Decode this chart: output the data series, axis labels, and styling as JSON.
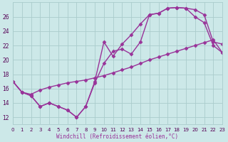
{
  "line_straight_x": [
    0,
    1,
    2,
    3,
    4,
    5,
    6,
    7,
    8,
    9,
    10,
    11,
    12,
    13,
    14,
    15,
    16,
    17,
    18,
    19,
    20,
    21,
    22,
    23
  ],
  "line_straight_y": [
    17.0,
    15.5,
    15.2,
    15.8,
    16.2,
    16.5,
    16.8,
    17.0,
    17.2,
    17.5,
    17.8,
    18.2,
    18.6,
    19.0,
    19.5,
    20.0,
    20.4,
    20.8,
    21.2,
    21.6,
    22.0,
    22.4,
    22.8,
    21.0
  ],
  "line_dip1_x": [
    0,
    1,
    2,
    3,
    4,
    5,
    6,
    7,
    8,
    9,
    10,
    11,
    12,
    13,
    14,
    15,
    16,
    17,
    18,
    19,
    20,
    21,
    22,
    23
  ],
  "line_dip1_y": [
    17.0,
    15.5,
    15.0,
    13.5,
    14.0,
    13.5,
    13.0,
    12.0,
    13.5,
    17.0,
    22.5,
    20.5,
    22.2,
    23.5,
    25.0,
    26.3,
    26.5,
    27.2,
    27.3,
    27.2,
    27.0,
    26.3,
    22.5,
    22.2
  ],
  "line_dip2_x": [
    0,
    1,
    2,
    3,
    4,
    5,
    6,
    7,
    8,
    9,
    10,
    11,
    12,
    13,
    14,
    15,
    16,
    17,
    18,
    19,
    20,
    21,
    22,
    23
  ],
  "line_dip2_y": [
    17.0,
    15.5,
    15.0,
    13.5,
    14.0,
    13.5,
    13.0,
    12.0,
    13.5,
    16.8,
    19.5,
    21.2,
    21.5,
    20.8,
    22.5,
    26.3,
    26.5,
    27.2,
    27.3,
    27.2,
    26.0,
    25.2,
    22.0,
    21.0
  ],
  "bg_color": "#cce8e8",
  "grid_color": "#aacccc",
  "line_color": "#993399",
  "marker": "D",
  "markersize": 2.5,
  "linewidth": 1.0,
  "xlabel": "Windchill (Refroidissement éolien,°C)",
  "xlim": [
    0,
    23
  ],
  "ylim": [
    11,
    28
  ],
  "yticks": [
    12,
    14,
    16,
    18,
    20,
    22,
    24,
    26
  ],
  "xticks": [
    0,
    1,
    2,
    3,
    4,
    5,
    6,
    7,
    8,
    9,
    10,
    11,
    12,
    13,
    14,
    15,
    16,
    17,
    18,
    19,
    20,
    21,
    22,
    23
  ]
}
